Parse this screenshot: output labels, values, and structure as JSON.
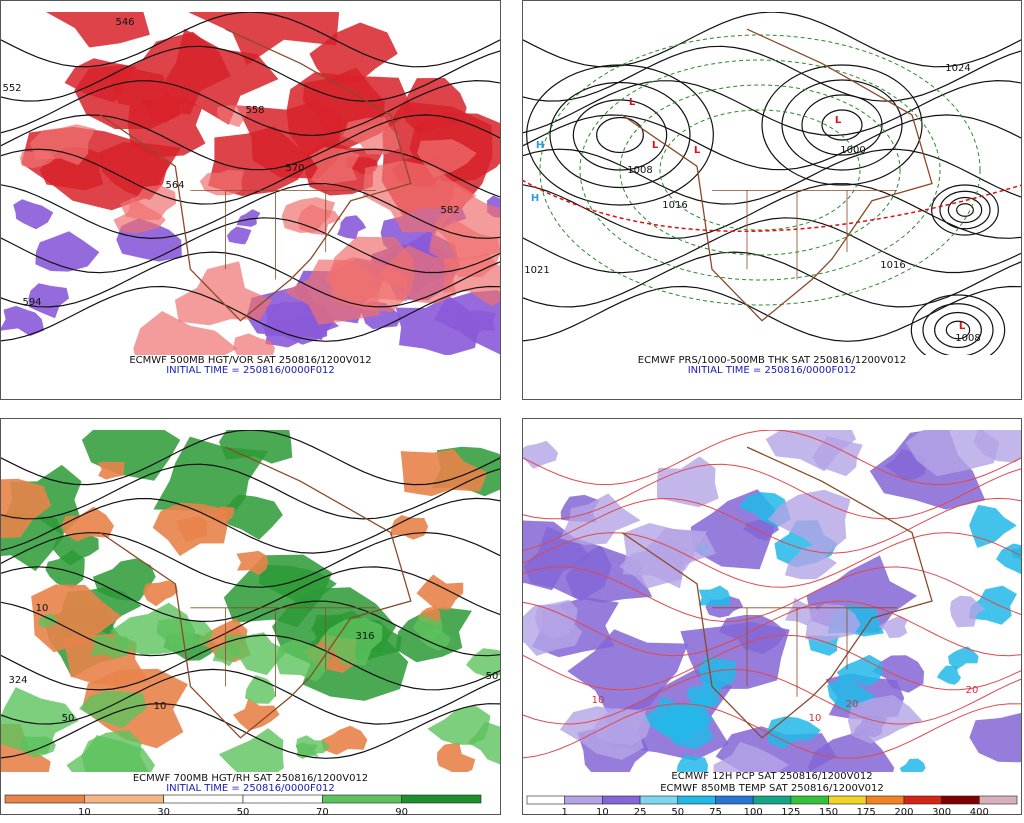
{
  "panels": [
    {
      "captions": [
        "ECMWF 500MB HGT/VOR SAT 250816/1200V012",
        "INITIAL TIME = 250816/0000F012"
      ],
      "contour_labels": [
        "546",
        "552",
        "558",
        "564",
        "570",
        "582",
        "594"
      ]
    },
    {
      "captions": [
        "ECMWF PRS/1000-500MB THK SAT 250816/1200V012",
        "INITIAL TIME = 250816/0000F012"
      ],
      "contour_labels": [
        "1008",
        "1016",
        "1024",
        "1000",
        "1021",
        "1016",
        "1008"
      ],
      "symbols": [
        "H",
        "H",
        "L",
        "L",
        "L",
        "L",
        "L"
      ]
    },
    {
      "captions": [
        "ECMWF 700MB HGT/RH SAT 250816/1200V012",
        "INITIAL TIME = 250816/0000F012"
      ],
      "contour_labels": [
        "10",
        "50",
        "324",
        "316",
        "50",
        "10"
      ],
      "colorbar": {
        "ticks": [
          10,
          30,
          50,
          70,
          90
        ],
        "colors": [
          "#e8834a",
          "#f6b684",
          "#ffffff",
          "#ffffff",
          "#5cc25c",
          "#1f8f2a"
        ]
      }
    },
    {
      "captions": [
        "ECMWF 12H PCP SAT 250816/1200V012",
        "ECMWF 850MB TEMP SAT 250816/1200V012"
      ],
      "contour_labels": [
        "10",
        "20",
        "20",
        "10"
      ],
      "colorbar": {
        "ticks": [
          1,
          10,
          25,
          50,
          75,
          100,
          125,
          150,
          175,
          200,
          300,
          400
        ],
        "colors": [
          "#ffffff",
          "#b4a4e6",
          "#8466d6",
          "#7fd6f2",
          "#22b8e8",
          "#2a74d4",
          "#14a488",
          "#34c038",
          "#f2d424",
          "#f08424",
          "#d42414",
          "#800000",
          "#d8b0bc"
        ]
      }
    }
  ]
}
